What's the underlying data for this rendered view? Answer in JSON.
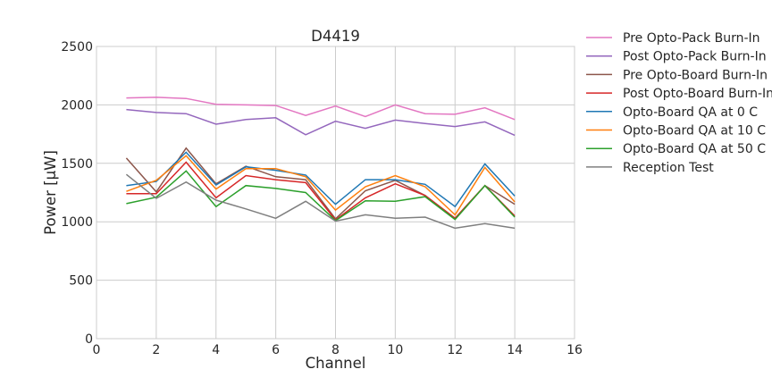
{
  "chart_data": {
    "type": "line",
    "title": "D4419",
    "xlabel": "Channel",
    "ylabel": "Power [µW]",
    "xlim": [
      0,
      16
    ],
    "ylim": [
      0,
      2500
    ],
    "xticks": [
      0,
      2,
      4,
      6,
      8,
      10,
      12,
      14,
      16
    ],
    "yticks": [
      0,
      500,
      1000,
      1500,
      2000,
      2500
    ],
    "grid": true,
    "legend_position": "outside-right",
    "x": [
      1,
      2,
      3,
      4,
      5,
      6,
      7,
      8,
      9,
      10,
      11,
      12,
      13,
      14
    ],
    "series": [
      {
        "name": "Pre Opto-Pack Burn-In",
        "color": "#e377c2",
        "values": [
          2060,
          2065,
          2055,
          2005,
          2000,
          1995,
          1910,
          1990,
          1900,
          2000,
          1925,
          1920,
          1975,
          1875
        ]
      },
      {
        "name": "Post Opto-Pack Burn-In",
        "color": "#9467bd",
        "values": [
          1960,
          1935,
          1925,
          1835,
          1875,
          1890,
          1745,
          1860,
          1800,
          1870,
          1840,
          1815,
          1855,
          1740
        ]
      },
      {
        "name": "Pre Opto-Board Burn-In",
        "color": "#8c564b",
        "values": [
          1545,
          1255,
          1630,
          1325,
          1475,
          1385,
          1360,
          1025,
          1265,
          1355,
          1225,
          1030,
          1310,
          1150
        ]
      },
      {
        "name": "Post Opto-Board Burn-In",
        "color": "#d62728",
        "values": [
          1240,
          1240,
          1510,
          1205,
          1395,
          1360,
          1335,
          1015,
          1205,
          1325,
          1225,
          1030,
          1310,
          1050
        ]
      },
      {
        "name": "Opto-Board QA at 0 C",
        "color": "#1f77b4",
        "values": [
          1310,
          1345,
          1595,
          1315,
          1470,
          1440,
          1400,
          1150,
          1360,
          1360,
          1320,
          1130,
          1495,
          1220
        ]
      },
      {
        "name": "Opto-Board QA at 10 C",
        "color": "#ff7f0e",
        "values": [
          1260,
          1355,
          1565,
          1280,
          1455,
          1455,
          1385,
          1100,
          1300,
          1395,
          1300,
          1060,
          1465,
          1170
        ]
      },
      {
        "name": "Opto-Board QA at 50 C",
        "color": "#2ca02c",
        "values": [
          1155,
          1210,
          1435,
          1130,
          1310,
          1285,
          1250,
          1010,
          1180,
          1175,
          1215,
          1020,
          1310,
          1040
        ]
      },
      {
        "name": "Reception Test",
        "color": "#7f7f7f",
        "values": [
          1405,
          1200,
          1340,
          1185,
          1110,
          1030,
          1175,
          1005,
          1060,
          1030,
          1040,
          945,
          985,
          945
        ]
      }
    ]
  }
}
